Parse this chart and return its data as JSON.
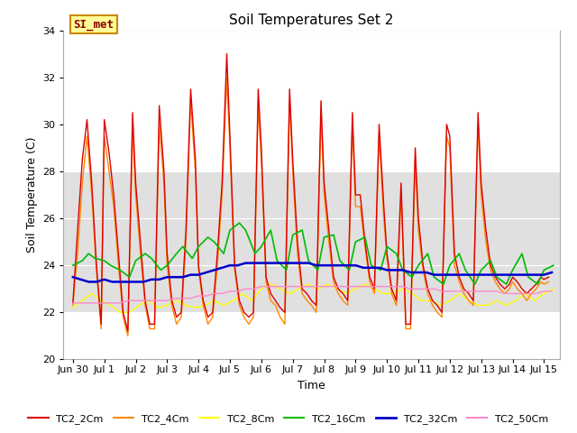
{
  "title": "Soil Temperatures Set 2",
  "xlabel": "Time",
  "ylabel": "Soil Temperature (C)",
  "ylim": [
    20,
    34
  ],
  "yticks": [
    20,
    22,
    24,
    26,
    28,
    30,
    32,
    34
  ],
  "xlim": [
    -0.3,
    15.5
  ],
  "background_color": "#ffffff",
  "plot_bg_color": "#ffffff",
  "gray_band_ymin": 22,
  "gray_band_ymax": 28,
  "gray_band_color": "#e0e0e0",
  "annotation_text": "SI_met",
  "annotation_bg": "#ffff99",
  "annotation_border": "#cc8800",
  "annotation_text_color": "#880000",
  "series": {
    "TC2_2Cm": {
      "color": "#dd0000",
      "lw": 1.0
    },
    "TC2_4Cm": {
      "color": "#ff8800",
      "lw": 1.0
    },
    "TC2_8Cm": {
      "color": "#ffff00",
      "lw": 1.0
    },
    "TC2_16Cm": {
      "color": "#00bb00",
      "lw": 1.2
    },
    "TC2_32Cm": {
      "color": "#0000cc",
      "lw": 1.8
    },
    "TC2_50Cm": {
      "color": "#ff88cc",
      "lw": 1.0
    }
  },
  "xtick_labels": [
    "Jun 30",
    "Jul 1",
    "Jul 2",
    "Jul 3",
    "Jul 4",
    "Jul 5",
    "Jul 6",
    "Jul 7",
    "Jul 8",
    "Jul 9",
    "Jul 10",
    "Jul 11",
    "Jul 12",
    "Jul 13",
    "Jul 14",
    "Jul 15"
  ],
  "xtick_positions": [
    0,
    1,
    2,
    3,
    4,
    5,
    6,
    7,
    8,
    9,
    10,
    11,
    12,
    13,
    14,
    15
  ],
  "TC2_2Cm_x": [
    0.0,
    0.15,
    0.3,
    0.45,
    0.6,
    0.75,
    0.9,
    1.0,
    1.15,
    1.3,
    1.45,
    1.6,
    1.75,
    1.9,
    2.0,
    2.15,
    2.3,
    2.45,
    2.6,
    2.75,
    2.9,
    3.0,
    3.15,
    3.3,
    3.45,
    3.6,
    3.75,
    3.9,
    4.0,
    4.15,
    4.3,
    4.45,
    4.6,
    4.75,
    4.9,
    5.0,
    5.15,
    5.3,
    5.45,
    5.6,
    5.75,
    5.9,
    6.0,
    6.15,
    6.3,
    6.45,
    6.6,
    6.75,
    6.9,
    7.0,
    7.15,
    7.3,
    7.45,
    7.6,
    7.75,
    7.9,
    8.0,
    8.15,
    8.3,
    8.45,
    8.6,
    8.75,
    8.9,
    9.0,
    9.15,
    9.3,
    9.45,
    9.6,
    9.75,
    9.9,
    10.0,
    10.15,
    10.3,
    10.45,
    10.6,
    10.75,
    10.9,
    11.0,
    11.15,
    11.3,
    11.45,
    11.6,
    11.75,
    11.9,
    12.0,
    12.15,
    12.3,
    12.45,
    12.6,
    12.75,
    12.9,
    13.0,
    13.15,
    13.3,
    13.45,
    13.6,
    13.75,
    13.9,
    14.0,
    14.15,
    14.3,
    14.45,
    14.6,
    14.75,
    14.9,
    15.0,
    15.15
  ],
  "TC2_2Cm_y": [
    22.4,
    25.5,
    28.5,
    30.2,
    27.5,
    24.0,
    21.5,
    30.2,
    28.8,
    27.0,
    24.5,
    22.0,
    21.2,
    30.5,
    27.5,
    25.0,
    22.5,
    21.5,
    21.5,
    30.8,
    28.0,
    24.5,
    22.5,
    21.8,
    22.0,
    25.5,
    31.5,
    28.5,
    24.0,
    22.5,
    21.8,
    22.0,
    24.5,
    27.5,
    33.0,
    29.5,
    24.0,
    22.5,
    22.0,
    21.8,
    22.0,
    31.5,
    29.0,
    23.5,
    22.8,
    22.5,
    22.2,
    22.0,
    31.5,
    28.5,
    25.0,
    23.0,
    22.8,
    22.5,
    22.3,
    31.0,
    27.5,
    25.5,
    23.5,
    23.0,
    22.8,
    22.5,
    30.5,
    27.0,
    27.0,
    25.0,
    23.5,
    23.0,
    30.0,
    26.5,
    24.5,
    23.0,
    22.5,
    27.5,
    21.5,
    21.5,
    29.0,
    26.0,
    24.0,
    23.0,
    22.5,
    22.3,
    22.0,
    30.0,
    29.5,
    24.5,
    23.5,
    23.0,
    22.8,
    22.5,
    30.5,
    27.5,
    25.5,
    24.0,
    23.5,
    23.2,
    23.0,
    23.2,
    23.5,
    23.3,
    23.0,
    22.8,
    23.0,
    23.2,
    23.5,
    23.4,
    23.5
  ],
  "TC2_4Cm_x": [
    0.0,
    0.15,
    0.3,
    0.45,
    0.6,
    0.75,
    0.9,
    1.0,
    1.15,
    1.3,
    1.45,
    1.6,
    1.75,
    1.9,
    2.0,
    2.15,
    2.3,
    2.45,
    2.6,
    2.75,
    2.9,
    3.0,
    3.15,
    3.3,
    3.45,
    3.6,
    3.75,
    3.9,
    4.0,
    4.15,
    4.3,
    4.45,
    4.6,
    4.75,
    4.9,
    5.0,
    5.15,
    5.3,
    5.45,
    5.6,
    5.75,
    5.9,
    6.0,
    6.15,
    6.3,
    6.45,
    6.6,
    6.75,
    6.9,
    7.0,
    7.15,
    7.3,
    7.45,
    7.6,
    7.75,
    7.9,
    8.0,
    8.15,
    8.3,
    8.45,
    8.6,
    8.75,
    8.9,
    9.0,
    9.15,
    9.3,
    9.45,
    9.6,
    9.75,
    9.9,
    10.0,
    10.15,
    10.3,
    10.45,
    10.6,
    10.75,
    10.9,
    11.0,
    11.15,
    11.3,
    11.45,
    11.6,
    11.75,
    11.9,
    12.0,
    12.15,
    12.3,
    12.45,
    12.6,
    12.75,
    12.9,
    13.0,
    13.15,
    13.3,
    13.45,
    13.6,
    13.75,
    13.9,
    14.0,
    14.15,
    14.3,
    14.45,
    14.6,
    14.75,
    14.9,
    15.0,
    15.15
  ],
  "TC2_4Cm_y": [
    22.3,
    24.5,
    27.5,
    29.5,
    27.0,
    23.8,
    21.3,
    29.5,
    28.0,
    26.5,
    24.0,
    21.8,
    21.0,
    29.8,
    27.0,
    24.5,
    22.3,
    21.3,
    21.3,
    30.0,
    27.5,
    24.0,
    22.3,
    21.5,
    21.8,
    25.0,
    31.0,
    28.0,
    23.8,
    22.3,
    21.5,
    21.8,
    24.0,
    27.0,
    32.0,
    29.0,
    23.8,
    22.3,
    21.8,
    21.5,
    21.8,
    30.8,
    28.5,
    23.3,
    22.5,
    22.3,
    21.8,
    21.5,
    31.0,
    28.0,
    24.5,
    22.8,
    22.5,
    22.3,
    22.0,
    30.5,
    27.0,
    25.0,
    23.3,
    22.8,
    22.5,
    22.3,
    30.0,
    26.5,
    26.5,
    24.8,
    23.3,
    22.8,
    29.5,
    26.0,
    24.3,
    22.8,
    22.3,
    27.0,
    21.3,
    21.3,
    28.5,
    25.5,
    23.8,
    22.8,
    22.3,
    22.0,
    21.8,
    29.5,
    29.0,
    24.0,
    23.3,
    22.8,
    22.5,
    22.3,
    30.0,
    27.0,
    25.0,
    23.8,
    23.3,
    23.0,
    22.8,
    23.0,
    23.3,
    23.0,
    22.8,
    22.5,
    22.8,
    23.0,
    23.3,
    23.2,
    23.3
  ],
  "TC2_8Cm_x": [
    0.0,
    0.3,
    0.6,
    0.9,
    1.2,
    1.5,
    1.8,
    2.1,
    2.4,
    2.7,
    3.0,
    3.3,
    3.6,
    3.9,
    4.2,
    4.5,
    4.8,
    5.1,
    5.4,
    5.7,
    6.0,
    6.3,
    6.6,
    6.9,
    7.2,
    7.5,
    7.8,
    8.1,
    8.4,
    8.7,
    9.0,
    9.3,
    9.6,
    9.9,
    10.2,
    10.5,
    10.8,
    11.1,
    11.4,
    11.7,
    12.0,
    12.3,
    12.6,
    12.9,
    13.2,
    13.5,
    13.8,
    14.1,
    14.4,
    14.7,
    15.0,
    15.3
  ],
  "TC2_8Cm_y": [
    22.2,
    22.5,
    22.8,
    22.5,
    22.3,
    22.0,
    22.0,
    22.3,
    22.5,
    22.2,
    22.3,
    22.5,
    22.3,
    22.2,
    22.3,
    22.5,
    22.3,
    22.5,
    22.8,
    22.5,
    23.0,
    23.2,
    23.0,
    22.8,
    23.0,
    23.2,
    23.0,
    23.2,
    23.0,
    22.8,
    23.0,
    23.2,
    23.0,
    22.8,
    22.8,
    23.0,
    22.8,
    22.5,
    22.5,
    22.3,
    22.5,
    22.8,
    22.5,
    22.3,
    22.3,
    22.5,
    22.3,
    22.5,
    22.8,
    22.5,
    22.8,
    23.0
  ],
  "TC2_16Cm_x": [
    0.0,
    0.3,
    0.5,
    0.7,
    1.0,
    1.2,
    1.5,
    1.8,
    2.0,
    2.3,
    2.5,
    2.8,
    3.0,
    3.3,
    3.5,
    3.8,
    4.0,
    4.3,
    4.5,
    4.8,
    5.0,
    5.3,
    5.5,
    5.8,
    6.0,
    6.3,
    6.5,
    6.8,
    7.0,
    7.3,
    7.5,
    7.8,
    8.0,
    8.3,
    8.5,
    8.8,
    9.0,
    9.3,
    9.5,
    9.8,
    10.0,
    10.3,
    10.5,
    10.8,
    11.0,
    11.3,
    11.5,
    11.8,
    12.0,
    12.3,
    12.5,
    12.8,
    13.0,
    13.3,
    13.5,
    13.8,
    14.0,
    14.3,
    14.5,
    14.8,
    15.0,
    15.3
  ],
  "TC2_16Cm_y": [
    24.0,
    24.2,
    24.5,
    24.3,
    24.2,
    24.0,
    23.8,
    23.5,
    24.2,
    24.5,
    24.3,
    23.8,
    24.0,
    24.5,
    24.8,
    24.3,
    24.8,
    25.2,
    25.0,
    24.5,
    25.5,
    25.8,
    25.5,
    24.5,
    24.8,
    25.5,
    24.2,
    23.8,
    25.3,
    25.5,
    24.2,
    23.8,
    25.2,
    25.3,
    24.2,
    23.8,
    25.0,
    25.2,
    24.0,
    23.8,
    24.8,
    24.5,
    23.8,
    23.5,
    24.0,
    24.5,
    23.5,
    23.2,
    24.0,
    24.5,
    23.8,
    23.2,
    23.8,
    24.2,
    23.5,
    23.2,
    23.8,
    24.5,
    23.5,
    23.2,
    23.8,
    24.0
  ],
  "TC2_32Cm_x": [
    0.0,
    0.25,
    0.5,
    0.75,
    1.0,
    1.25,
    1.5,
    1.75,
    2.0,
    2.25,
    2.5,
    2.75,
    3.0,
    3.25,
    3.5,
    3.75,
    4.0,
    4.25,
    4.5,
    4.75,
    5.0,
    5.25,
    5.5,
    5.75,
    6.0,
    6.25,
    6.5,
    6.75,
    7.0,
    7.25,
    7.5,
    7.75,
    8.0,
    8.25,
    8.5,
    8.75,
    9.0,
    9.25,
    9.5,
    9.75,
    10.0,
    10.25,
    10.5,
    10.75,
    11.0,
    11.25,
    11.5,
    11.75,
    12.0,
    12.25,
    12.5,
    12.75,
    13.0,
    13.25,
    13.5,
    13.75,
    14.0,
    14.25,
    14.5,
    14.75,
    15.0,
    15.25
  ],
  "TC2_32Cm_y": [
    23.5,
    23.4,
    23.3,
    23.3,
    23.4,
    23.3,
    23.3,
    23.3,
    23.3,
    23.3,
    23.4,
    23.4,
    23.5,
    23.5,
    23.5,
    23.6,
    23.6,
    23.7,
    23.8,
    23.9,
    24.0,
    24.0,
    24.1,
    24.1,
    24.1,
    24.1,
    24.1,
    24.1,
    24.1,
    24.1,
    24.1,
    24.0,
    24.0,
    24.0,
    24.0,
    24.0,
    24.0,
    23.9,
    23.9,
    23.9,
    23.8,
    23.8,
    23.8,
    23.7,
    23.7,
    23.7,
    23.6,
    23.6,
    23.6,
    23.6,
    23.6,
    23.6,
    23.6,
    23.6,
    23.6,
    23.6,
    23.6,
    23.6,
    23.6,
    23.6,
    23.6,
    23.7
  ],
  "TC2_50Cm_x": [
    0.0,
    0.25,
    0.5,
    0.75,
    1.0,
    1.25,
    1.5,
    1.75,
    2.0,
    2.25,
    2.5,
    2.75,
    3.0,
    3.25,
    3.5,
    3.75,
    4.0,
    4.25,
    4.5,
    4.75,
    5.0,
    5.25,
    5.5,
    5.75,
    6.0,
    6.25,
    6.5,
    6.75,
    7.0,
    7.25,
    7.5,
    7.75,
    8.0,
    8.25,
    8.5,
    8.75,
    9.0,
    9.25,
    9.5,
    9.75,
    10.0,
    10.25,
    10.5,
    10.75,
    11.0,
    11.25,
    11.5,
    11.75,
    12.0,
    12.25,
    12.5,
    12.75,
    13.0,
    13.25,
    13.5,
    13.75,
    14.0,
    14.25,
    14.5,
    14.75,
    15.0,
    15.25
  ],
  "TC2_50Cm_y": [
    22.4,
    22.4,
    22.4,
    22.4,
    22.4,
    22.4,
    22.4,
    22.5,
    22.5,
    22.5,
    22.5,
    22.5,
    22.5,
    22.6,
    22.6,
    22.6,
    22.7,
    22.7,
    22.8,
    22.8,
    22.9,
    22.9,
    23.0,
    23.0,
    23.1,
    23.1,
    23.1,
    23.1,
    23.1,
    23.1,
    23.1,
    23.1,
    23.1,
    23.1,
    23.1,
    23.1,
    23.1,
    23.1,
    23.1,
    23.1,
    23.1,
    23.1,
    23.1,
    23.0,
    23.0,
    23.0,
    23.0,
    22.9,
    22.9,
    22.9,
    22.9,
    22.9,
    22.9,
    22.9,
    22.9,
    22.8,
    22.8,
    22.8,
    22.8,
    22.8,
    22.9,
    22.9
  ]
}
